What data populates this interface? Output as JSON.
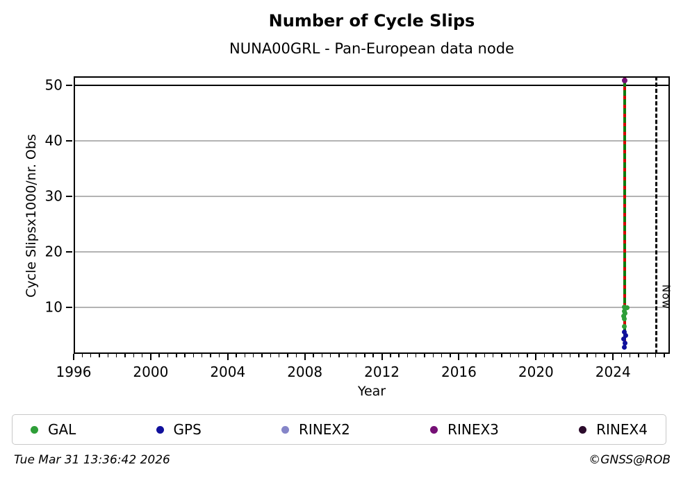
{
  "header": {
    "title": "Number of Cycle Slips",
    "subtitle": "NUNA00GRL - Pan-European data node"
  },
  "axis": {
    "xlabel": "Year",
    "ylabel": "Cycle Slipsx1000/nr. Obs",
    "now_label": "Now"
  },
  "chart_data": {
    "type": "scatter",
    "title": "Number of Cycle Slips",
    "subtitle": "NUNA00GRL - Pan-European data node",
    "xlabel": "Year",
    "ylabel": "Cycle Slipsx1000/nr. Obs",
    "xlim": [
      1996,
      2026.95
    ],
    "ylim": [
      1.6,
      51.6
    ],
    "x_major_ticks": [
      1996,
      2000,
      2004,
      2008,
      2012,
      2016,
      2020,
      2024
    ],
    "x_minor_step": 0.4444,
    "y_ticks": [
      10,
      20,
      30,
      40,
      50
    ],
    "grid": "horizontal-gray",
    "gridline_color": "#b3b3b3",
    "threshold_line": {
      "y": 50,
      "color": "#000000"
    },
    "now_line": {
      "x": 2026.25,
      "label": "Now",
      "style": "dashed-black"
    },
    "event_line": {
      "x": 2024.6,
      "y_from": 2.8,
      "y_to": 51.35,
      "colors": {
        "solid": "#0e7a0e",
        "dash": "#d40000"
      }
    },
    "legend_position": "bottom",
    "series": [
      {
        "name": "GAL",
        "color": "#2e9e38",
        "points": [
          [
            2024.6,
            10.0
          ],
          [
            2024.74,
            9.9
          ],
          [
            2024.58,
            9.25
          ],
          [
            2024.63,
            8.9
          ],
          [
            2024.56,
            8.4
          ],
          [
            2024.6,
            7.9
          ],
          [
            2024.6,
            6.6
          ]
        ]
      },
      {
        "name": "GPS",
        "color": "#10109c",
        "points": [
          [
            2024.6,
            5.5
          ],
          [
            2024.65,
            4.9
          ],
          [
            2024.56,
            4.25
          ],
          [
            2024.62,
            3.5
          ],
          [
            2024.6,
            2.75
          ]
        ]
      },
      {
        "name": "RINEX2",
        "color": "#8585c8",
        "points": []
      },
      {
        "name": "RINEX3",
        "color": "#750f75",
        "points": [
          [
            2024.6,
            50.8
          ]
        ]
      },
      {
        "name": "RINEX4",
        "color": "#2b0b2b",
        "points": []
      }
    ]
  },
  "footer": {
    "timestamp": "Tue Mar 31 13:36:42 2026",
    "credit": "©GNSS@ROB"
  }
}
